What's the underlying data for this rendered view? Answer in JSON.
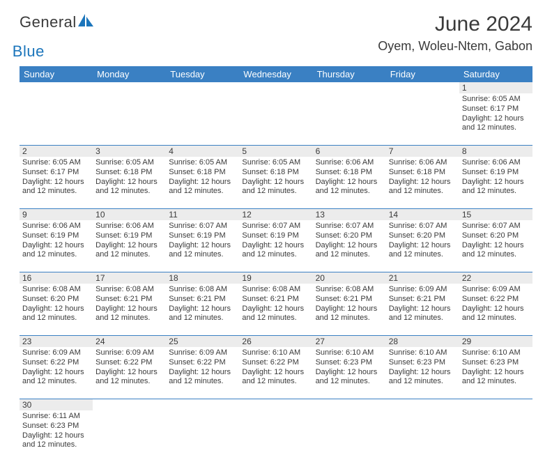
{
  "brand": {
    "name1": "General",
    "name2": "Blue",
    "color_dark": "#3a3a3a",
    "color_blue": "#1b75bb"
  },
  "title": "June 2024",
  "location": "Oyem, Woleu-Ntem, Gabon",
  "header_bg": "#3a80c3",
  "header_fg": "#ffffff",
  "daynum_bg": "#ececec",
  "week_border": "#3a80c3",
  "text_color": "#3a3a3a",
  "days": [
    "Sunday",
    "Monday",
    "Tuesday",
    "Wednesday",
    "Thursday",
    "Friday",
    "Saturday"
  ],
  "weeks": [
    [
      null,
      null,
      null,
      null,
      null,
      null,
      {
        "n": "1",
        "sr": "6:05 AM",
        "ss": "6:17 PM",
        "dl": "12 hours and 12 minutes."
      }
    ],
    [
      {
        "n": "2",
        "sr": "6:05 AM",
        "ss": "6:17 PM",
        "dl": "12 hours and 12 minutes."
      },
      {
        "n": "3",
        "sr": "6:05 AM",
        "ss": "6:18 PM",
        "dl": "12 hours and 12 minutes."
      },
      {
        "n": "4",
        "sr": "6:05 AM",
        "ss": "6:18 PM",
        "dl": "12 hours and 12 minutes."
      },
      {
        "n": "5",
        "sr": "6:05 AM",
        "ss": "6:18 PM",
        "dl": "12 hours and 12 minutes."
      },
      {
        "n": "6",
        "sr": "6:06 AM",
        "ss": "6:18 PM",
        "dl": "12 hours and 12 minutes."
      },
      {
        "n": "7",
        "sr": "6:06 AM",
        "ss": "6:18 PM",
        "dl": "12 hours and 12 minutes."
      },
      {
        "n": "8",
        "sr": "6:06 AM",
        "ss": "6:19 PM",
        "dl": "12 hours and 12 minutes."
      }
    ],
    [
      {
        "n": "9",
        "sr": "6:06 AM",
        "ss": "6:19 PM",
        "dl": "12 hours and 12 minutes."
      },
      {
        "n": "10",
        "sr": "6:06 AM",
        "ss": "6:19 PM",
        "dl": "12 hours and 12 minutes."
      },
      {
        "n": "11",
        "sr": "6:07 AM",
        "ss": "6:19 PM",
        "dl": "12 hours and 12 minutes."
      },
      {
        "n": "12",
        "sr": "6:07 AM",
        "ss": "6:19 PM",
        "dl": "12 hours and 12 minutes."
      },
      {
        "n": "13",
        "sr": "6:07 AM",
        "ss": "6:20 PM",
        "dl": "12 hours and 12 minutes."
      },
      {
        "n": "14",
        "sr": "6:07 AM",
        "ss": "6:20 PM",
        "dl": "12 hours and 12 minutes."
      },
      {
        "n": "15",
        "sr": "6:07 AM",
        "ss": "6:20 PM",
        "dl": "12 hours and 12 minutes."
      }
    ],
    [
      {
        "n": "16",
        "sr": "6:08 AM",
        "ss": "6:20 PM",
        "dl": "12 hours and 12 minutes."
      },
      {
        "n": "17",
        "sr": "6:08 AM",
        "ss": "6:21 PM",
        "dl": "12 hours and 12 minutes."
      },
      {
        "n": "18",
        "sr": "6:08 AM",
        "ss": "6:21 PM",
        "dl": "12 hours and 12 minutes."
      },
      {
        "n": "19",
        "sr": "6:08 AM",
        "ss": "6:21 PM",
        "dl": "12 hours and 12 minutes."
      },
      {
        "n": "20",
        "sr": "6:08 AM",
        "ss": "6:21 PM",
        "dl": "12 hours and 12 minutes."
      },
      {
        "n": "21",
        "sr": "6:09 AM",
        "ss": "6:21 PM",
        "dl": "12 hours and 12 minutes."
      },
      {
        "n": "22",
        "sr": "6:09 AM",
        "ss": "6:22 PM",
        "dl": "12 hours and 12 minutes."
      }
    ],
    [
      {
        "n": "23",
        "sr": "6:09 AM",
        "ss": "6:22 PM",
        "dl": "12 hours and 12 minutes."
      },
      {
        "n": "24",
        "sr": "6:09 AM",
        "ss": "6:22 PM",
        "dl": "12 hours and 12 minutes."
      },
      {
        "n": "25",
        "sr": "6:09 AM",
        "ss": "6:22 PM",
        "dl": "12 hours and 12 minutes."
      },
      {
        "n": "26",
        "sr": "6:10 AM",
        "ss": "6:22 PM",
        "dl": "12 hours and 12 minutes."
      },
      {
        "n": "27",
        "sr": "6:10 AM",
        "ss": "6:23 PM",
        "dl": "12 hours and 12 minutes."
      },
      {
        "n": "28",
        "sr": "6:10 AM",
        "ss": "6:23 PM",
        "dl": "12 hours and 12 minutes."
      },
      {
        "n": "29",
        "sr": "6:10 AM",
        "ss": "6:23 PM",
        "dl": "12 hours and 12 minutes."
      }
    ],
    [
      {
        "n": "30",
        "sr": "6:11 AM",
        "ss": "6:23 PM",
        "dl": "12 hours and 12 minutes."
      },
      null,
      null,
      null,
      null,
      null,
      null
    ]
  ],
  "labels": {
    "sunrise": "Sunrise:",
    "sunset": "Sunset:",
    "daylight": "Daylight:"
  }
}
